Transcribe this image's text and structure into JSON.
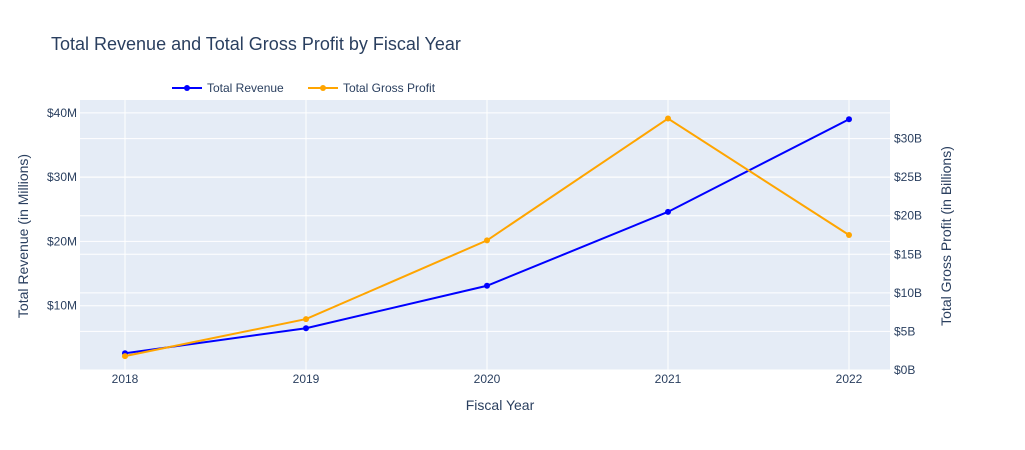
{
  "chart_data": {
    "type": "line",
    "title": "Total Revenue and Total Gross Profit by Fiscal Year",
    "xlabel": "Fiscal Year",
    "ylabel_left": "Total Revenue (in Millions)",
    "ylabel_right": "Total Gross Profit (in Billions)",
    "x": [
      "2018",
      "2019",
      "2020",
      "2021",
      "2022"
    ],
    "y_left_range": [
      0,
      42
    ],
    "y_right_range": [
      0,
      35
    ],
    "y_left_ticks": [
      {
        "value": 10,
        "label": "$10M"
      },
      {
        "value": 20,
        "label": "$20M"
      },
      {
        "value": 30,
        "label": "$30M"
      },
      {
        "value": 40,
        "label": "$40M"
      }
    ],
    "y_right_ticks": [
      {
        "value": 0,
        "label": "$0B"
      },
      {
        "value": 5,
        "label": "$5B"
      },
      {
        "value": 10,
        "label": "$10B"
      },
      {
        "value": 15,
        "label": "$15B"
      },
      {
        "value": 20,
        "label": "$20B"
      },
      {
        "value": 25,
        "label": "$25B"
      },
      {
        "value": 30,
        "label": "$30B"
      }
    ],
    "legend_position": "top-left",
    "grid": true,
    "series": [
      {
        "name": "Total Revenue",
        "axis": "left",
        "color": "#0000ff",
        "values": [
          2.6,
          6.5,
          13.1,
          24.6,
          39.0
        ]
      },
      {
        "name": "Total Gross Profit",
        "axis": "right",
        "color": "#ffa500",
        "values": [
          1.8,
          6.6,
          16.8,
          32.6,
          17.5
        ]
      }
    ]
  }
}
